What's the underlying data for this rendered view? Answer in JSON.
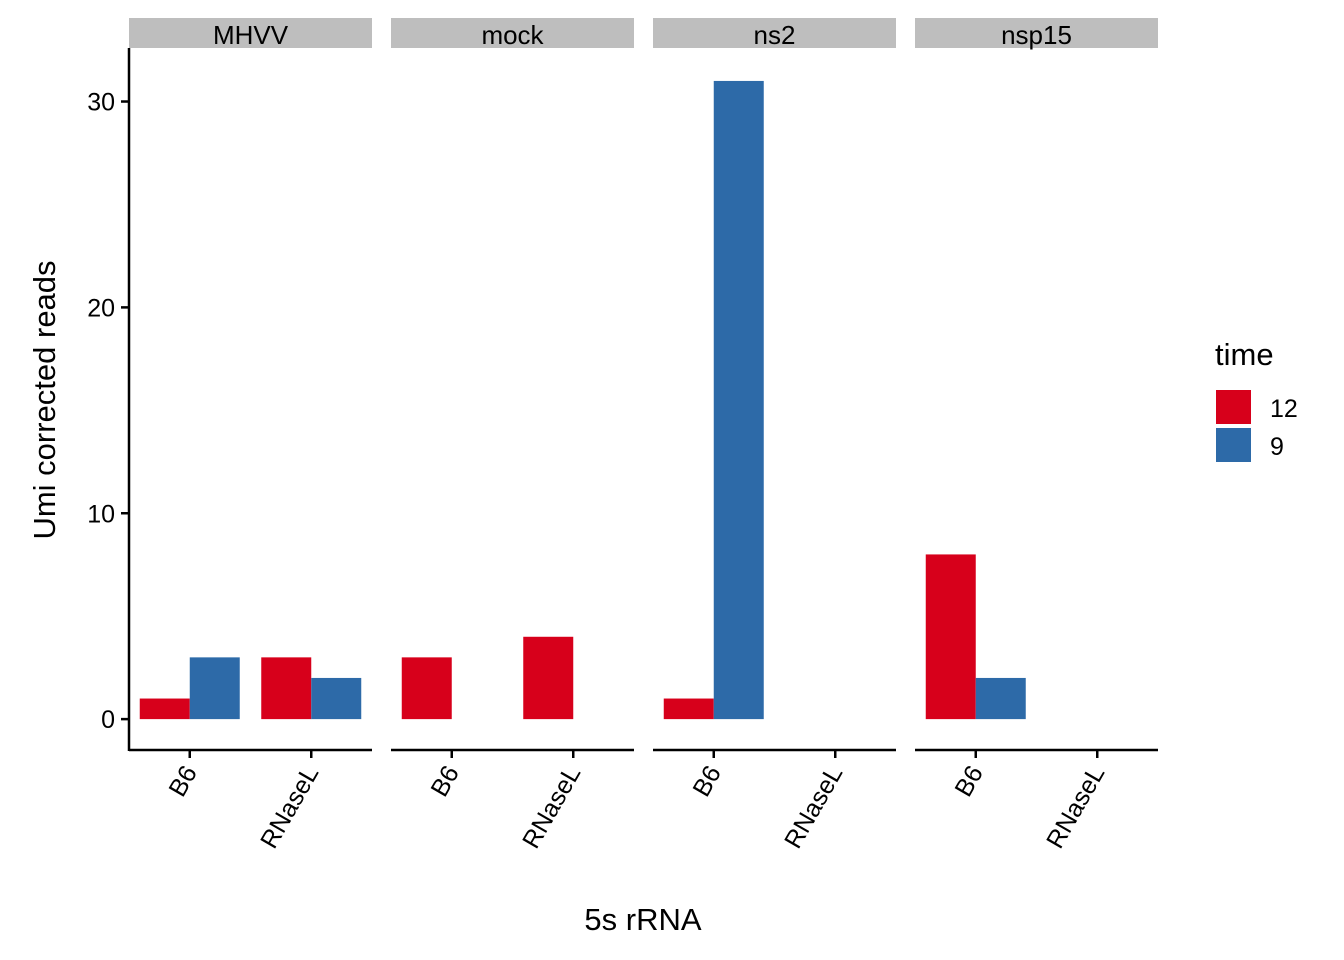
{
  "chart_data": {
    "type": "bar",
    "xlabel": "5s rRNA",
    "ylabel": "Umi corrected reads",
    "ylim": [
      -1.5,
      32.6
    ],
    "yticks": [
      0,
      10,
      20,
      30
    ],
    "categories": [
      "B6",
      "RNaseL"
    ],
    "legend": {
      "title": "time",
      "placement": "right",
      "entries": [
        {
          "label": "12",
          "color": "#D7001B"
        },
        {
          "label": "9",
          "color": "#2D6AA8"
        }
      ]
    },
    "panels": [
      {
        "name": "MHVV",
        "series": [
          {
            "time": "12",
            "values": [
              1,
              3
            ]
          },
          {
            "time": "9",
            "values": [
              3,
              2
            ]
          }
        ]
      },
      {
        "name": "mock",
        "series": [
          {
            "time": "12",
            "values": [
              3,
              4
            ]
          },
          {
            "time": "9",
            "values": [
              null,
              null
            ]
          }
        ]
      },
      {
        "name": "ns2",
        "series": [
          {
            "time": "12",
            "values": [
              1,
              null
            ]
          },
          {
            "time": "9",
            "values": [
              31,
              null
            ]
          }
        ]
      },
      {
        "name": "nsp15",
        "series": [
          {
            "time": "12",
            "values": [
              8,
              null
            ]
          },
          {
            "time": "9",
            "values": [
              2,
              null
            ]
          }
        ]
      }
    ],
    "strip_color": "#BEBEBE",
    "grid": false
  }
}
